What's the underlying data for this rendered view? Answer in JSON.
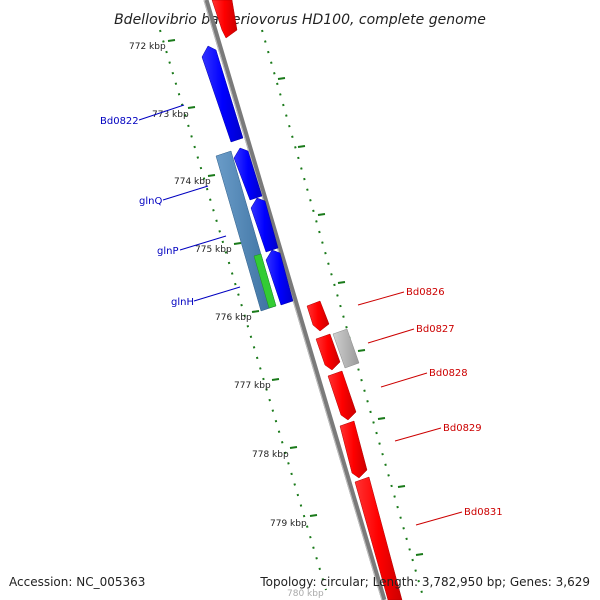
{
  "title": "Bdellovibrio bacteriovorus HD100, complete genome",
  "footer": {
    "accession": "Accession: NC_005363",
    "summary": "Topology: circular; Length: 3,782,950 bp; Genes: 3,629"
  },
  "scale_labels": [
    "772 kbp",
    "773 kbp",
    "774 kbp",
    "775 kbp",
    "776 kbp",
    "777 kbp",
    "778 kbp",
    "779 kbp"
  ],
  "bottom_faint_label": "780 kbp",
  "genes_forward": [
    {
      "label": "Bd0822",
      "color": "#0000ff"
    },
    {
      "label": "glnQ",
      "color": "#0000ff"
    },
    {
      "label": "glnP",
      "color": "#0000ff"
    },
    {
      "label": "glnH",
      "color": "#0000ff"
    }
  ],
  "genes_reverse": [
    {
      "label": "Bd0826",
      "color": "#ff0000"
    },
    {
      "label": "Bd0827",
      "color": "#ff0000"
    },
    {
      "label": "Bd0828",
      "color": "#ff0000"
    },
    {
      "label": "Bd0829",
      "color": "#ff0000"
    },
    {
      "label": "Bd0831",
      "color": "#ff0000"
    }
  ],
  "colors": {
    "forward": "#0000ff",
    "reverse": "#ff0000",
    "operon_band": "#4682b4",
    "green_feature": "#33cc33",
    "grey_feature": "#b0b0b0",
    "backbone": "#808080",
    "tick_green": "#1a7a1a"
  }
}
